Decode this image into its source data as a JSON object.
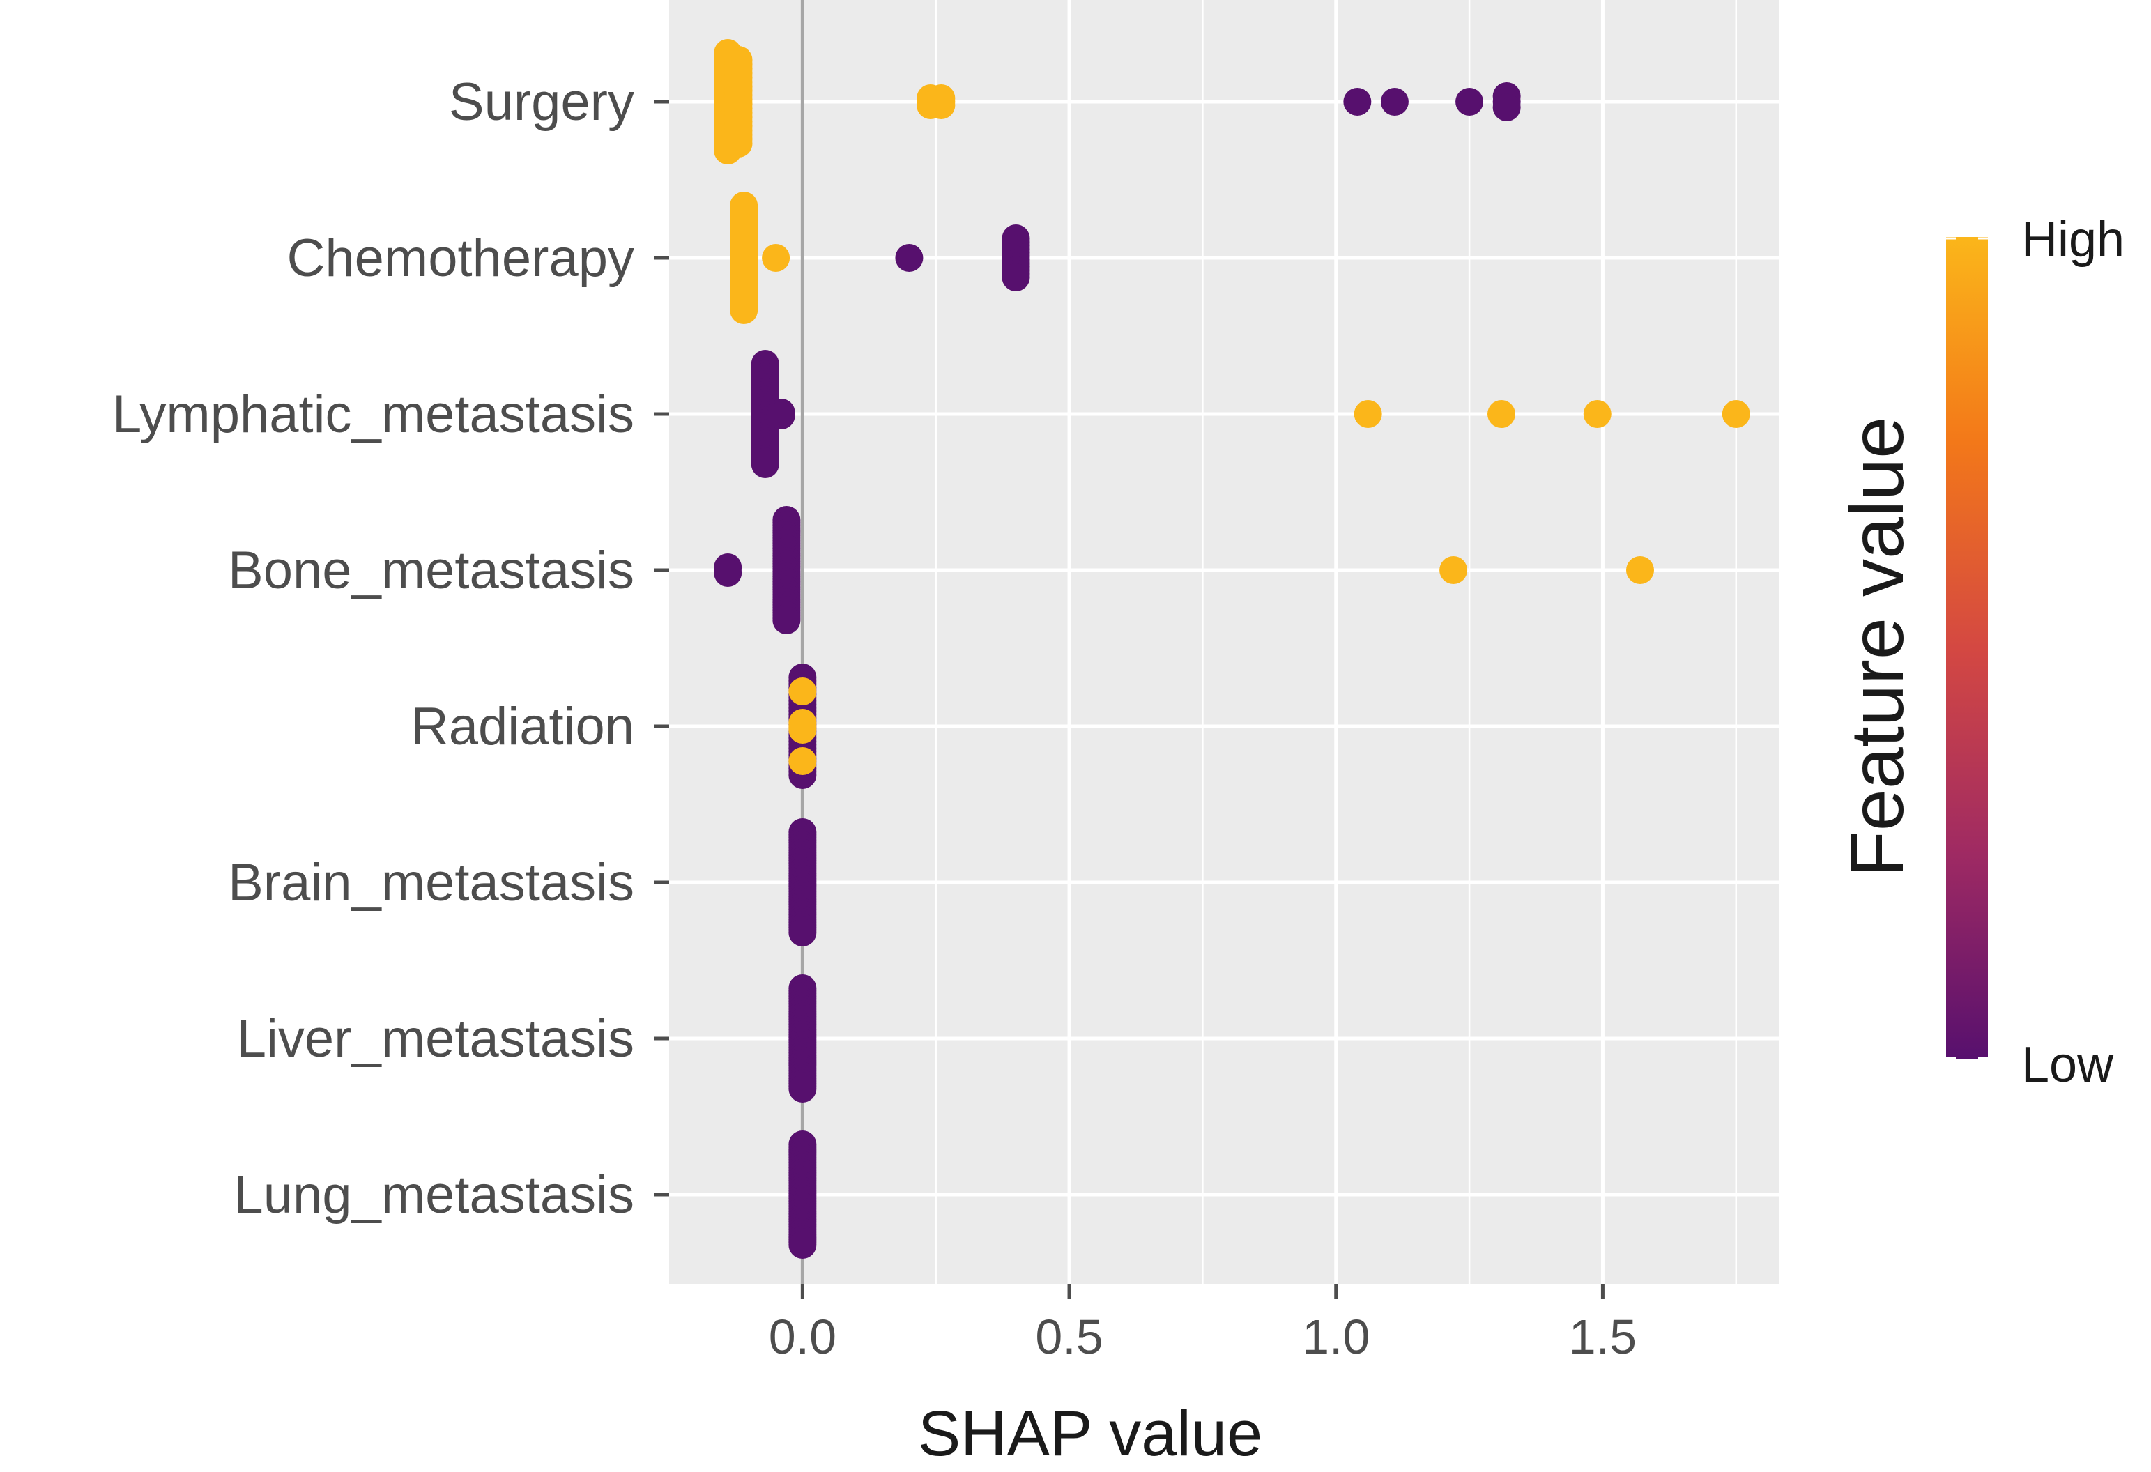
{
  "chart_data": {
    "type": "scatter",
    "subtype": "shap-beeswarm",
    "title": "",
    "xlabel": "SHAP value",
    "ylabel": "",
    "xlim": [
      -0.25,
      1.83
    ],
    "x_ticks": [
      0.0,
      0.5,
      1.0,
      1.5
    ],
    "x_tick_labels": [
      "0.0",
      "0.5",
      "1.0",
      "1.5"
    ],
    "grid": true,
    "zero_line": 0.0,
    "features": [
      {
        "name": "Surgery",
        "points": [
          {
            "x": -0.14,
            "v": "high",
            "n": 40,
            "spread": 0.7
          },
          {
            "x": -0.12,
            "v": "high",
            "n": 20,
            "spread": 0.6
          },
          {
            "x": 0.24,
            "v": "high",
            "n": 3,
            "spread": 0.05
          },
          {
            "x": 0.26,
            "v": "high",
            "n": 3,
            "spread": 0.05
          },
          {
            "x": 1.04,
            "v": "low",
            "n": 1,
            "spread": 0
          },
          {
            "x": 1.11,
            "v": "low",
            "n": 1,
            "spread": 0
          },
          {
            "x": 1.25,
            "v": "low",
            "n": 1,
            "spread": 0
          },
          {
            "x": 1.32,
            "v": "low",
            "n": 3,
            "spread": 0.08
          }
        ]
      },
      {
        "name": "Chemotherapy",
        "points": [
          {
            "x": -0.11,
            "v": "high",
            "n": 40,
            "spread": 0.75
          },
          {
            "x": -0.05,
            "v": "high",
            "n": 1,
            "spread": 0
          },
          {
            "x": 0.2,
            "v": "low",
            "n": 1,
            "spread": 0
          },
          {
            "x": 0.4,
            "v": "low",
            "n": 12,
            "spread": 0.28
          }
        ]
      },
      {
        "name": "Lymphatic_metastasis",
        "points": [
          {
            "x": -0.07,
            "v": "low",
            "n": 40,
            "spread": 0.72
          },
          {
            "x": -0.04,
            "v": "low",
            "n": 2,
            "spread": 0.02
          },
          {
            "x": 1.06,
            "v": "high",
            "n": 1,
            "spread": 0
          },
          {
            "x": 1.31,
            "v": "high",
            "n": 1,
            "spread": 0
          },
          {
            "x": 1.49,
            "v": "high",
            "n": 1,
            "spread": 0
          },
          {
            "x": 1.75,
            "v": "high",
            "n": 1,
            "spread": 0
          }
        ]
      },
      {
        "name": "Bone_metastasis",
        "points": [
          {
            "x": -0.14,
            "v": "low",
            "n": 2,
            "spread": 0.04
          },
          {
            "x": -0.03,
            "v": "low",
            "n": 40,
            "spread": 0.72
          },
          {
            "x": 1.22,
            "v": "high",
            "n": 1,
            "spread": 0
          },
          {
            "x": 1.57,
            "v": "high",
            "n": 1,
            "spread": 0
          }
        ]
      },
      {
        "name": "Radiation",
        "points": [
          {
            "x": 0.0,
            "v": "low",
            "n": 30,
            "spread": 0.7
          },
          {
            "x": 0.0,
            "v": "high",
            "n": 3,
            "spread": 0.5
          },
          {
            "x": 0.0,
            "v": "high",
            "n": 2,
            "spread": 0.05
          }
        ]
      },
      {
        "name": "Brain_metastasis",
        "points": [
          {
            "x": 0.0,
            "v": "low",
            "n": 40,
            "spread": 0.72
          }
        ]
      },
      {
        "name": "Liver_metastasis",
        "points": [
          {
            "x": 0.0,
            "v": "low",
            "n": 40,
            "spread": 0.72
          }
        ]
      },
      {
        "name": "Lung_metastasis",
        "points": [
          {
            "x": 0.0,
            "v": "low",
            "n": 40,
            "spread": 0.72
          }
        ]
      }
    ],
    "legend": {
      "title": "Feature value",
      "high_label": "High",
      "low_label": "Low",
      "placement": "right",
      "colors": {
        "high": "#fbb61a",
        "mid_high": "#f37819",
        "mid": "#d44842",
        "mid_low": "#9f2a63",
        "low": "#57106e"
      }
    },
    "colors": {
      "panel_background": "#ebebeb",
      "grid": "#ffffff",
      "zero_line": "#a6a6a6",
      "tick": "#4d4d4d"
    }
  }
}
